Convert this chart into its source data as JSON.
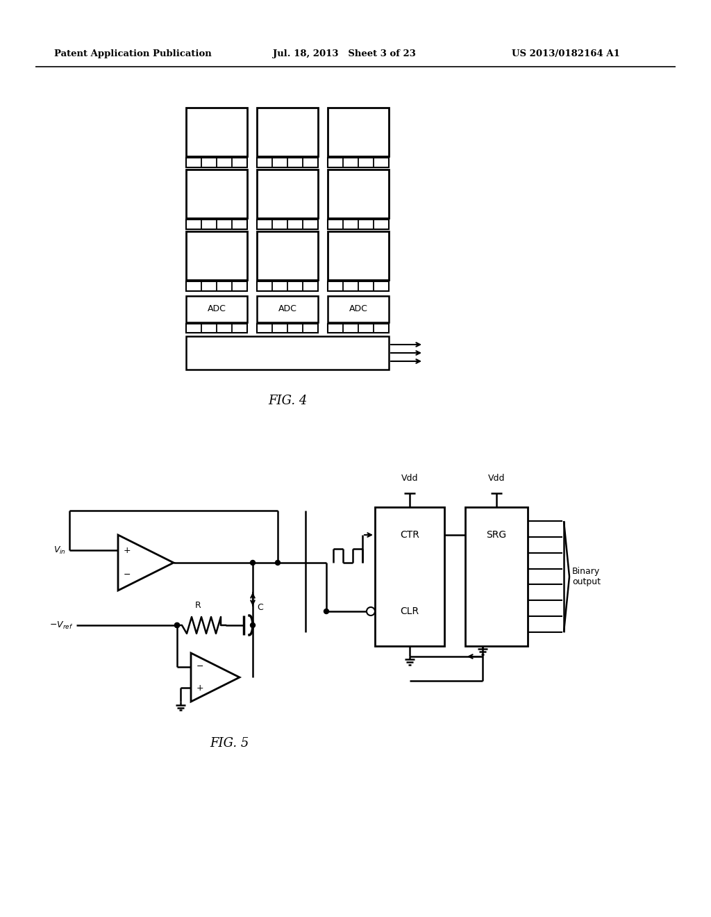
{
  "bg_color": "#ffffff",
  "header_left": "Patent Application Publication",
  "header_mid": "Jul. 18, 2013   Sheet 3 of 23",
  "header_right": "US 2013/0182164 A1",
  "fig4_label": "FIG. 4",
  "fig5_label": "FIG. 5"
}
